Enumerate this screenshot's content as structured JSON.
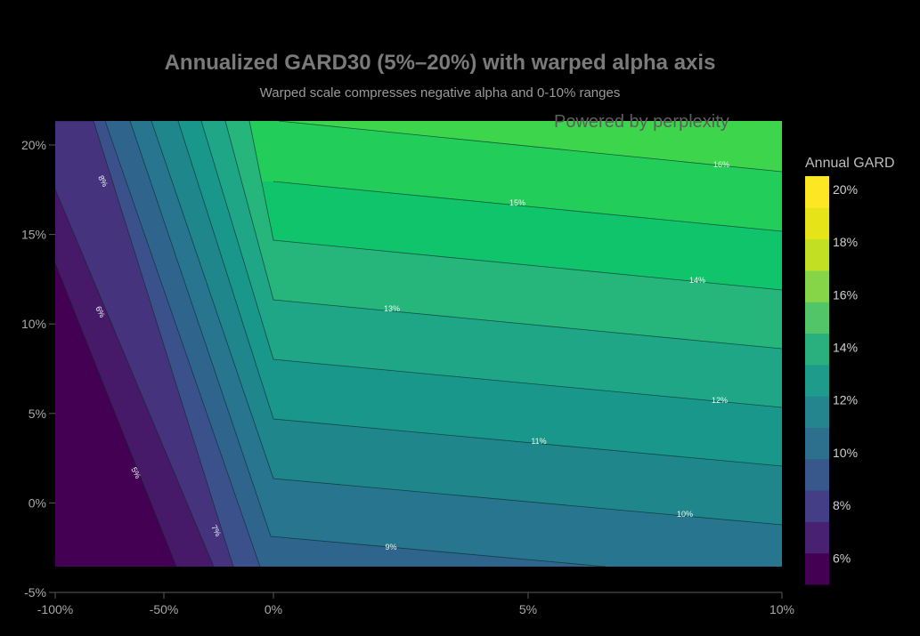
{
  "chart_data": {
    "type": "contour",
    "title": "Annualized GARD30 (5%–20%) with warped alpha axis",
    "subtitle": "Warped scale compresses negative alpha and 0-10% ranges",
    "xlabel": "",
    "ylabel": "",
    "x_ticks": [
      "-100%",
      "-50%",
      "0%",
      "5%",
      "10%"
    ],
    "y_ticks": [
      "-5%",
      "0%",
      "5%",
      "10%",
      "15%",
      "20%"
    ],
    "ylim": [
      -5,
      21.5
    ],
    "colorbar": {
      "title": "Annual GARD",
      "tick_labels": [
        "6%",
        "8%",
        "10%",
        "12%",
        "14%",
        "16%",
        "18%",
        "20%"
      ],
      "range": [
        5,
        20.5
      ]
    },
    "contour_labels": [
      {
        "text": "5%"
      },
      {
        "text": "6%"
      },
      {
        "text": "7%"
      },
      {
        "text": "8%"
      },
      {
        "text": "9%"
      },
      {
        "text": "10%"
      },
      {
        "text": "11%"
      },
      {
        "text": "12%"
      },
      {
        "text": "13%"
      },
      {
        "text": "14%"
      },
      {
        "text": "15%"
      },
      {
        "text": "16%"
      }
    ],
    "watermark": "Powered by perplexity"
  }
}
